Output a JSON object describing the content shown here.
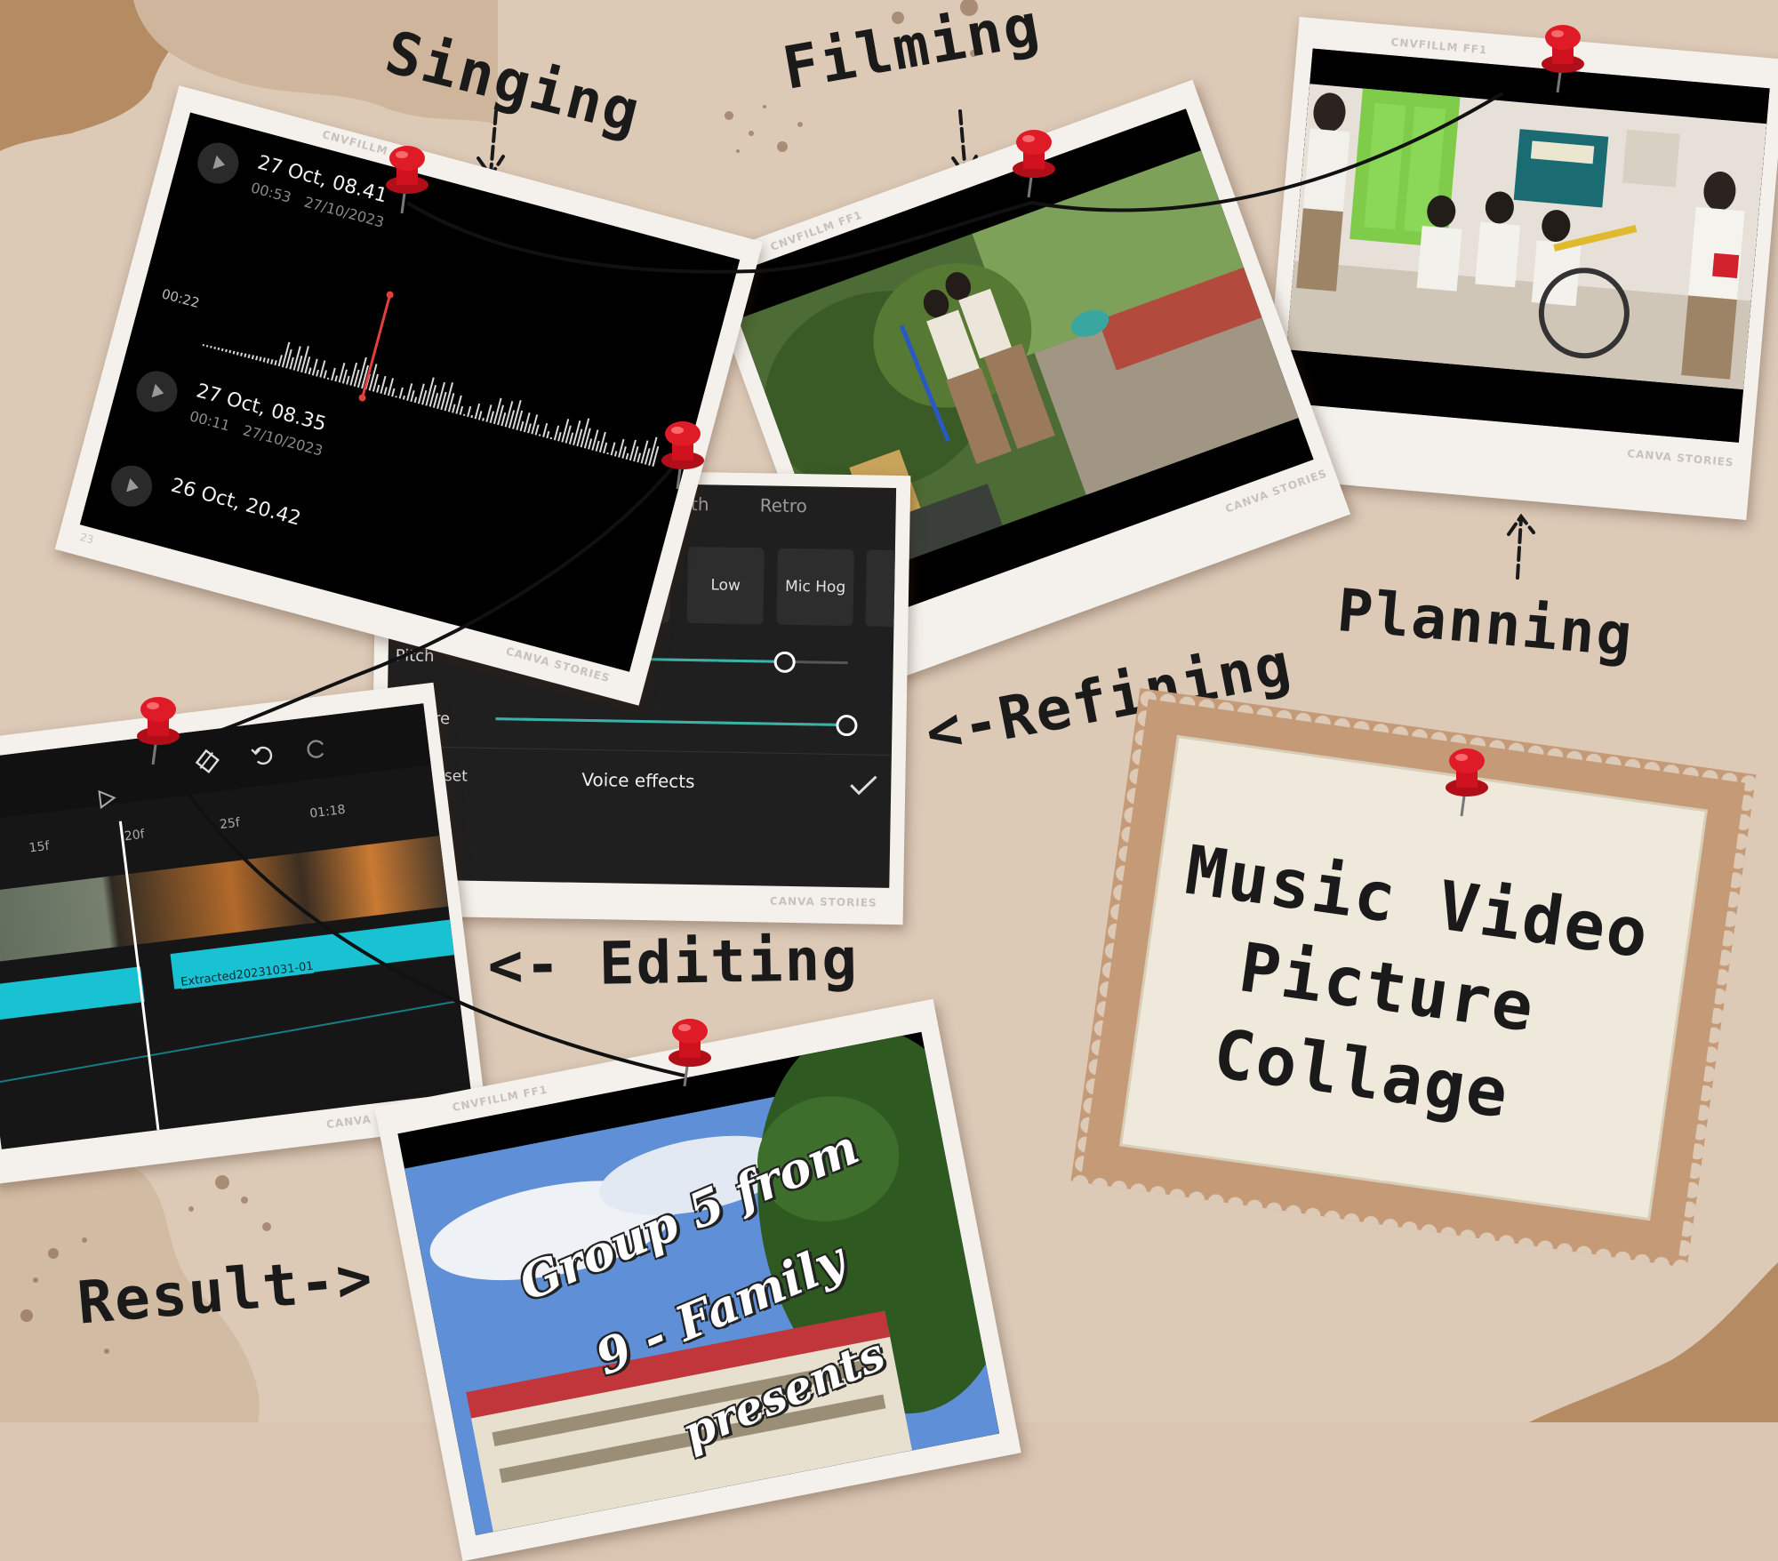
{
  "labels": {
    "singing": "Singing",
    "filming": "Filming",
    "planning": "Planning",
    "refining": "<-Refining",
    "editing": "<- Editing",
    "result": "Result->"
  },
  "stamp": {
    "line1": "Music Video",
    "line2": "Picture",
    "line3": "Collage"
  },
  "watermarks": {
    "cnvfillm": "CNVFILLM FF1",
    "canva_stories": "CANVA STORIES",
    "frame_no": "23"
  },
  "recorder": {
    "items": [
      {
        "title": "27 Oct, 08.41",
        "duration": "00:53",
        "date": "27/10/2023"
      },
      {
        "title": "27 Oct, 08.35",
        "duration": "00:11",
        "date": "27/10/2023"
      },
      {
        "title": "26 Oct, 20.42",
        "duration": "",
        "date": ""
      }
    ],
    "time_marker": "00:22"
  },
  "voice_effects": {
    "top_tabs": [
      "Synth",
      "Retro"
    ],
    "presets": [
      "Low",
      "Mic Hog"
    ],
    "pitch_label": "Pitch",
    "pitch_value": 0.82,
    "timbre_label": "Timbre",
    "timbre_value": 1.0,
    "reset_label": "Reset",
    "title": "Voice effects"
  },
  "editor": {
    "ticks": [
      "15f",
      "20f",
      "25f",
      "01:18"
    ],
    "clip_label": "Extracted20231031-01"
  },
  "result_video": {
    "line1": "Group 5 from",
    "line2": "9 - Family",
    "line3": "presents"
  },
  "colors": {
    "background": "#d9c5b2",
    "pin": "#d0121f",
    "stamp_border": "#c79a78",
    "stamp_paper": "#efe8da",
    "accent_cyan": "#19c2d2"
  }
}
